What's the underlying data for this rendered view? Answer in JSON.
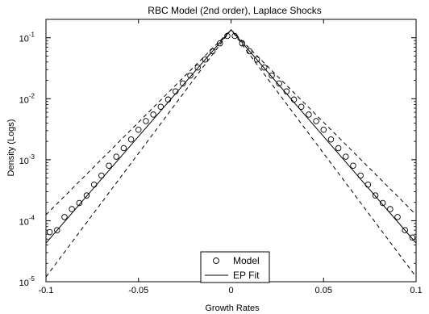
{
  "chart_data": {
    "type": "line",
    "title": "RBC Model (2nd order), Laplace Shocks",
    "xlabel": "Growth Rates",
    "ylabel": "Density (Logs)",
    "xlim": [
      -0.1,
      0.1
    ],
    "ylim": [
      1e-05,
      0.2
    ],
    "yscale": "log",
    "grid": false,
    "legend_position": "bottom-center",
    "x_ticks": [
      {
        "value": -0.1,
        "label": "-0.1"
      },
      {
        "value": -0.05,
        "label": "-0.05"
      },
      {
        "value": 0,
        "label": "0"
      },
      {
        "value": 0.05,
        "label": "0.05"
      },
      {
        "value": 0.1,
        "label": "0.1"
      }
    ],
    "y_ticks": [
      {
        "value": 1e-05,
        "base": "10",
        "exp": "-5"
      },
      {
        "value": 0.0001,
        "base": "10",
        "exp": "-4"
      },
      {
        "value": 0.001,
        "base": "10",
        "exp": "-3"
      },
      {
        "value": 0.01,
        "base": "10",
        "exp": "-2"
      },
      {
        "value": 0.1,
        "base": "10",
        "exp": "-1"
      }
    ],
    "series": [
      {
        "name": "Model",
        "style": "circles",
        "x": [
          -0.098,
          -0.094,
          -0.09,
          -0.086,
          -0.082,
          -0.078,
          -0.074,
          -0.07,
          -0.066,
          -0.062,
          -0.058,
          -0.054,
          -0.05,
          -0.046,
          -0.042,
          -0.038,
          -0.034,
          -0.03,
          -0.026,
          -0.022,
          -0.018,
          -0.014,
          -0.01,
          -0.006,
          -0.002,
          0.002,
          0.006,
          0.01,
          0.014,
          0.018,
          0.022,
          0.026,
          0.03,
          0.034,
          0.038,
          0.042,
          0.046,
          0.05,
          0.054,
          0.058,
          0.062,
          0.066,
          0.07,
          0.074,
          0.078,
          0.082,
          0.086,
          0.09,
          0.094,
          0.098
        ],
        "y": [
          6.5e-05,
          7e-05,
          0.000115,
          0.000155,
          0.000195,
          0.00026,
          0.00039,
          0.00055,
          0.0008,
          0.00112,
          0.00155,
          0.00215,
          0.0031,
          0.0043,
          0.0055,
          0.0074,
          0.0097,
          0.0132,
          0.0178,
          0.024,
          0.0325,
          0.044,
          0.06,
          0.081,
          0.107,
          0.107,
          0.081,
          0.06,
          0.044,
          0.0325,
          0.024,
          0.0178,
          0.0132,
          0.0097,
          0.0074,
          0.0055,
          0.0043,
          0.0031,
          0.00215,
          0.00155,
          0.00112,
          0.0008,
          0.00055,
          0.00039,
          0.00026,
          0.000195,
          0.000155,
          0.000115,
          7e-05,
          5.3e-05
        ]
      },
      {
        "name": "EP Fit",
        "style": "solid",
        "x": [
          -0.1,
          0,
          0.1
        ],
        "y": [
          4.3e-05,
          0.135,
          4.3e-05
        ]
      },
      {
        "style": "dashed",
        "x": [
          -0.1,
          0,
          0.1
        ],
        "y": [
          0.000125,
          0.135,
          0.000125
        ]
      },
      {
        "style": "dashed",
        "x": [
          -0.1,
          0,
          0.1
        ],
        "y": [
          1.2e-05,
          0.135,
          1.2e-05
        ]
      }
    ]
  }
}
